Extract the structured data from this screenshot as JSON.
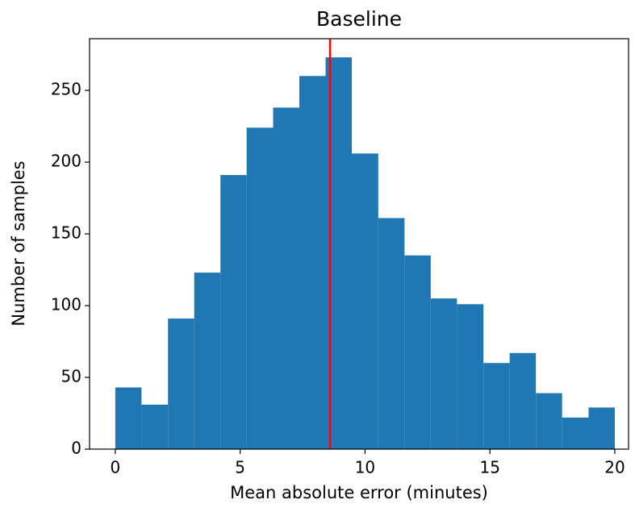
{
  "chart_data": {
    "type": "histogram",
    "title": "Baseline",
    "xlabel": "Mean absolute error (minutes)",
    "ylabel": "Number of samples",
    "bins": [
      0,
      1.05,
      2.11,
      3.16,
      4.21,
      5.26,
      6.32,
      7.37,
      8.42,
      9.47,
      10.53,
      11.58,
      12.63,
      13.68,
      14.74,
      15.79,
      16.84,
      17.89,
      18.95,
      20
    ],
    "values": [
      43,
      31,
      91,
      123,
      191,
      224,
      238,
      260,
      273,
      206,
      161,
      135,
      105,
      101,
      60,
      67,
      39,
      22,
      29
    ],
    "color": "#1f77b4",
    "vline": 8.6,
    "vline_color": "red",
    "xlim": [
      -1.03,
      20.55
    ],
    "xticks": [
      0,
      5,
      10,
      15,
      20
    ],
    "ylim": [
      0,
      286
    ],
    "yticks": [
      0,
      50,
      100,
      150,
      200,
      250
    ]
  }
}
